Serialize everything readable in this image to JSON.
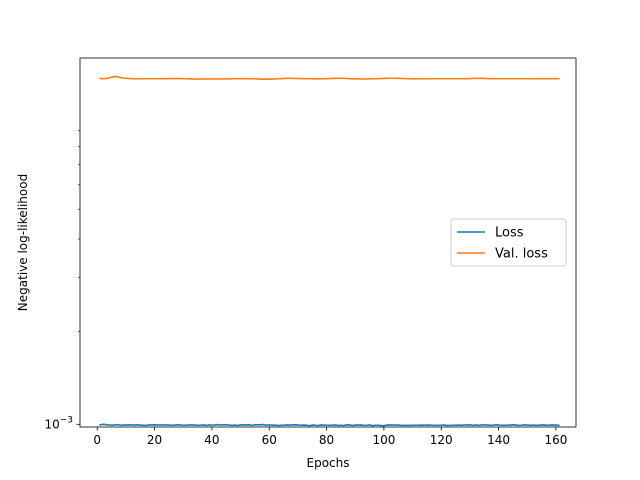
{
  "chart_data": {
    "type": "line",
    "title": "",
    "xlabel": "Epochs",
    "ylabel": "Negative log-likelihood",
    "xlim": [
      -6,
      167
    ],
    "x_ticks": [
      0,
      20,
      40,
      60,
      80,
      100,
      120,
      140,
      160
    ],
    "y_scale": "log",
    "ylim": [
      0.00098,
      0.0155
    ],
    "y_tick_major": {
      "value": 0.001,
      "base": "10",
      "exponent": "−3"
    },
    "grid": false,
    "legend_position": "center-right",
    "series": [
      {
        "name": "Loss",
        "color": "#1f77b4",
        "x_start": 1,
        "x_step": 1,
        "values": [
          0.000995,
          0.001,
          0.000998,
          0.000994,
          0.000994,
          0.000994,
          0.000998,
          0.000993,
          0.000994,
          0.000994,
          0.000996,
          0.000995,
          0.000994,
          0.000996,
          0.000994,
          0.000993,
          0.000992,
          0.000995,
          0.000995,
          0.000996,
          0.000995,
          0.000994,
          0.000995,
          0.000995,
          0.000994,
          0.000993,
          0.000994,
          0.000996,
          0.000995,
          0.000993,
          0.000993,
          0.000995,
          0.000995,
          0.000994,
          0.000993,
          0.000993,
          0.000996,
          0.000992,
          0.000995,
          0.000993,
          0.000995,
          0.000998,
          0.000994,
          0.000996,
          0.000996,
          0.000994,
          0.000992,
          0.000994,
          0.000991,
          0.000995,
          0.000996,
          0.000995,
          0.000996,
          0.000992,
          0.000997,
          0.000996,
          0.000995,
          0.000998,
          0.000993,
          0.000995,
          0.000993,
          0.000994,
          0.000991,
          0.000993,
          0.000993,
          0.000995,
          0.000994,
          0.000995,
          0.000996,
          0.000995,
          0.000993,
          0.000994,
          0.000993,
          0.00099,
          0.000994,
          0.000993,
          0.000991,
          0.000995,
          0.000994,
          0.000993,
          0.000993,
          0.000993,
          0.000995,
          0.000992,
          0.000993,
          0.000991,
          0.000996,
          0.000995,
          0.000991,
          0.000994,
          0.000994,
          0.000995,
          0.000993,
          0.000992,
          0.000996,
          0.00099,
          0.000993,
          0.000993,
          0.000991,
          0.00099,
          0.000994,
          0.000995,
          0.000994,
          0.000994,
          0.000994,
          0.000992,
          0.000993,
          0.000992,
          0.000992,
          0.000993,
          0.000993,
          0.000993,
          0.000994,
          0.000993,
          0.000994,
          0.000994,
          0.000993,
          0.000992,
          0.000993,
          0.000993,
          0.000995,
          0.000991,
          0.000992,
          0.000993,
          0.000993,
          0.000994,
          0.000993,
          0.000994,
          0.000995,
          0.000996,
          0.000992,
          0.000995,
          0.000993,
          0.000995,
          0.000995,
          0.000995,
          0.000993,
          0.000993,
          0.000997,
          0.000994,
          0.000993,
          0.000993,
          0.000993,
          0.000994,
          0.000996,
          0.000995,
          0.000992,
          0.000993,
          0.000996,
          0.000994,
          0.000993,
          0.000994,
          0.000993,
          0.000993,
          0.000995,
          0.000994,
          0.000993,
          0.000994,
          0.000995,
          0.000994,
          0.000992
        ]
      },
      {
        "name": "Val. loss",
        "color": "#ff7f0e",
        "x_start": 1,
        "x_step": 1,
        "values": [
          0.0133,
          0.01327,
          0.01329,
          0.01335,
          0.01343,
          0.01349,
          0.01347,
          0.0134,
          0.01334,
          0.01332,
          0.0133,
          0.01328,
          0.01327,
          0.01327,
          0.01327,
          0.01327,
          0.01327,
          0.01327,
          0.01327,
          0.01327,
          0.01327,
          0.01327,
          0.01328,
          0.01328,
          0.01328,
          0.01329,
          0.01329,
          0.01329,
          0.01329,
          0.01328,
          0.01327,
          0.01326,
          0.01325,
          0.01324,
          0.01324,
          0.01324,
          0.01324,
          0.01325,
          0.01325,
          0.01325,
          0.01325,
          0.01325,
          0.01325,
          0.01325,
          0.01325,
          0.01326,
          0.01326,
          0.01327,
          0.01327,
          0.01328,
          0.01328,
          0.01328,
          0.01328,
          0.01327,
          0.01326,
          0.01325,
          0.01324,
          0.01323,
          0.01323,
          0.01323,
          0.01324,
          0.01325,
          0.01327,
          0.01328,
          0.0133,
          0.01331,
          0.01331,
          0.01331,
          0.0133,
          0.0133,
          0.01329,
          0.01328,
          0.01327,
          0.01327,
          0.01326,
          0.01326,
          0.01326,
          0.01326,
          0.01327,
          0.01328,
          0.01329,
          0.0133,
          0.01331,
          0.01332,
          0.01332,
          0.01331,
          0.0133,
          0.01328,
          0.01327,
          0.01326,
          0.01325,
          0.01325,
          0.01325,
          0.01325,
          0.01326,
          0.01326,
          0.01327,
          0.01328,
          0.01329,
          0.0133,
          0.01331,
          0.01332,
          0.01332,
          0.01332,
          0.01331,
          0.0133,
          0.01329,
          0.01328,
          0.01327,
          0.01326,
          0.01326,
          0.01326,
          0.01327,
          0.01327,
          0.01327,
          0.01327,
          0.01327,
          0.01327,
          0.01327,
          0.01327,
          0.01327,
          0.01327,
          0.01327,
          0.01327,
          0.01327,
          0.01327,
          0.01327,
          0.01327,
          0.01328,
          0.01329,
          0.0133,
          0.01331,
          0.01331,
          0.01331,
          0.0133,
          0.01329,
          0.01328,
          0.01327,
          0.01327,
          0.01327,
          0.01327,
          0.01327,
          0.01327,
          0.01327,
          0.01327,
          0.01327,
          0.01327,
          0.01327,
          0.01327,
          0.01327,
          0.01327,
          0.01327,
          0.01327,
          0.01328,
          0.01328,
          0.01328,
          0.01328,
          0.01328,
          0.01328,
          0.01328,
          0.01328
        ]
      }
    ]
  }
}
